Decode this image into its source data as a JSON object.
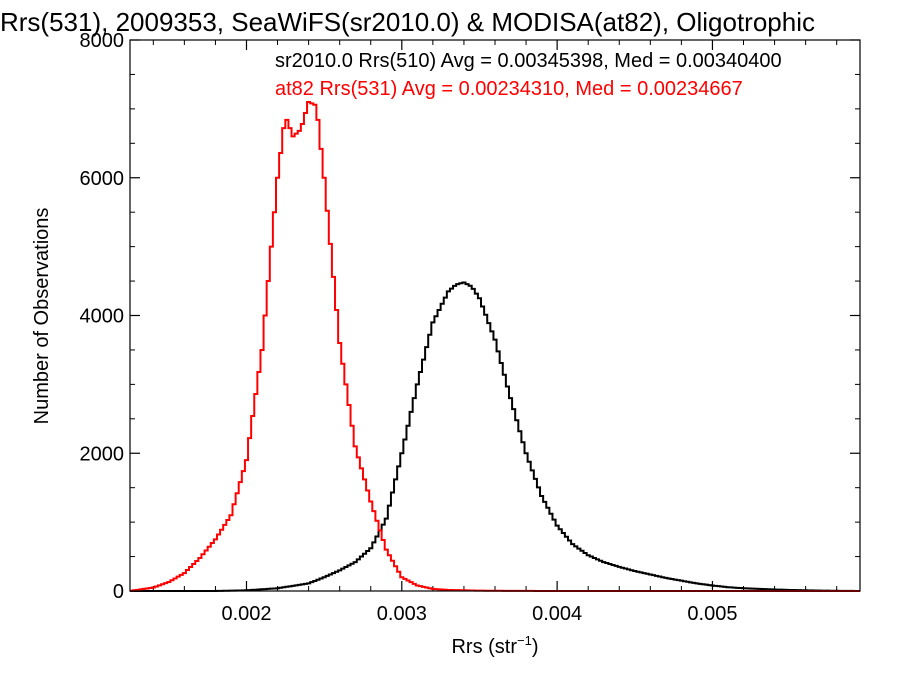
{
  "chart_data": {
    "type": "line",
    "title": "Rrs(531), 2009353, SeaWiFS(sr2010.0) & MODISA(at82), Oligotrophic",
    "xlabel": {
      "base": "Rrs (str",
      "sup": "−1",
      "end": ")"
    },
    "ylabel": "Number of Observations",
    "xlim": [
      0.00125,
      0.00595
    ],
    "ylim": [
      0,
      8000
    ],
    "x_ticks": [
      {
        "value": 0.002,
        "label": "0.002"
      },
      {
        "value": 0.003,
        "label": "0.003"
      },
      {
        "value": 0.004,
        "label": "0.004"
      },
      {
        "value": 0.005,
        "label": "0.005"
      }
    ],
    "y_ticks": [
      {
        "value": 0,
        "label": "0"
      },
      {
        "value": 2000,
        "label": "2000"
      },
      {
        "value": 4000,
        "label": "4000"
      },
      {
        "value": 6000,
        "label": "6000"
      },
      {
        "value": 8000,
        "label": "8000"
      }
    ],
    "grid": false,
    "annotations": [
      {
        "text": "sr2010.0 Rrs(510) Avg = 0.00345398, Med = 0.00340400",
        "color": "#000000"
      },
      {
        "text": "at82 Rrs(531) Avg = 0.00234310, Med = 0.00234667",
        "color": "#ff0000"
      }
    ],
    "series": [
      {
        "color": "#000000",
        "x": [
          0.00125,
          0.0014,
          0.0016,
          0.0018,
          0.002,
          0.0022,
          0.0024,
          0.0025,
          0.0026,
          0.0027,
          0.0028,
          0.0029,
          0.003,
          0.0031,
          0.0032,
          0.0033,
          0.00335,
          0.0034,
          0.00345,
          0.0035,
          0.0036,
          0.0037,
          0.0038,
          0.0039,
          0.004,
          0.0041,
          0.0042,
          0.0043,
          0.0044,
          0.0045,
          0.0046,
          0.0047,
          0.0048,
          0.0049,
          0.005,
          0.0051,
          0.0052,
          0.0053,
          0.0054,
          0.0055,
          0.0056,
          0.0057,
          0.0058,
          0.00595
        ],
        "y": [
          0,
          0,
          0,
          0,
          10,
          40,
          110,
          200,
          300,
          420,
          620,
          1050,
          2000,
          3000,
          3900,
          4350,
          4450,
          4480,
          4420,
          4250,
          3650,
          2800,
          2000,
          1380,
          950,
          680,
          520,
          420,
          350,
          290,
          240,
          190,
          150,
          110,
          80,
          55,
          40,
          30,
          22,
          15,
          10,
          6,
          3,
          0
        ]
      },
      {
        "color": "#ff0000",
        "x": [
          0.00125,
          0.0014,
          0.0015,
          0.0016,
          0.0017,
          0.0018,
          0.0019,
          0.002,
          0.0021,
          0.0022,
          0.00225,
          0.0023,
          0.00235,
          0.0024,
          0.00245,
          0.0025,
          0.0026,
          0.0027,
          0.0028,
          0.0029,
          0.003,
          0.0031,
          0.0032,
          0.0033,
          0.0035,
          0.0037,
          0.004,
          0.0045,
          0.005,
          0.00595
        ],
        "y": [
          0,
          50,
          130,
          260,
          480,
          750,
          1100,
          1900,
          3500,
          6000,
          6900,
          6600,
          6700,
          7100,
          7050,
          6000,
          3600,
          2100,
          1300,
          600,
          200,
          80,
          30,
          15,
          5,
          2,
          0,
          0,
          0,
          0
        ]
      }
    ]
  }
}
